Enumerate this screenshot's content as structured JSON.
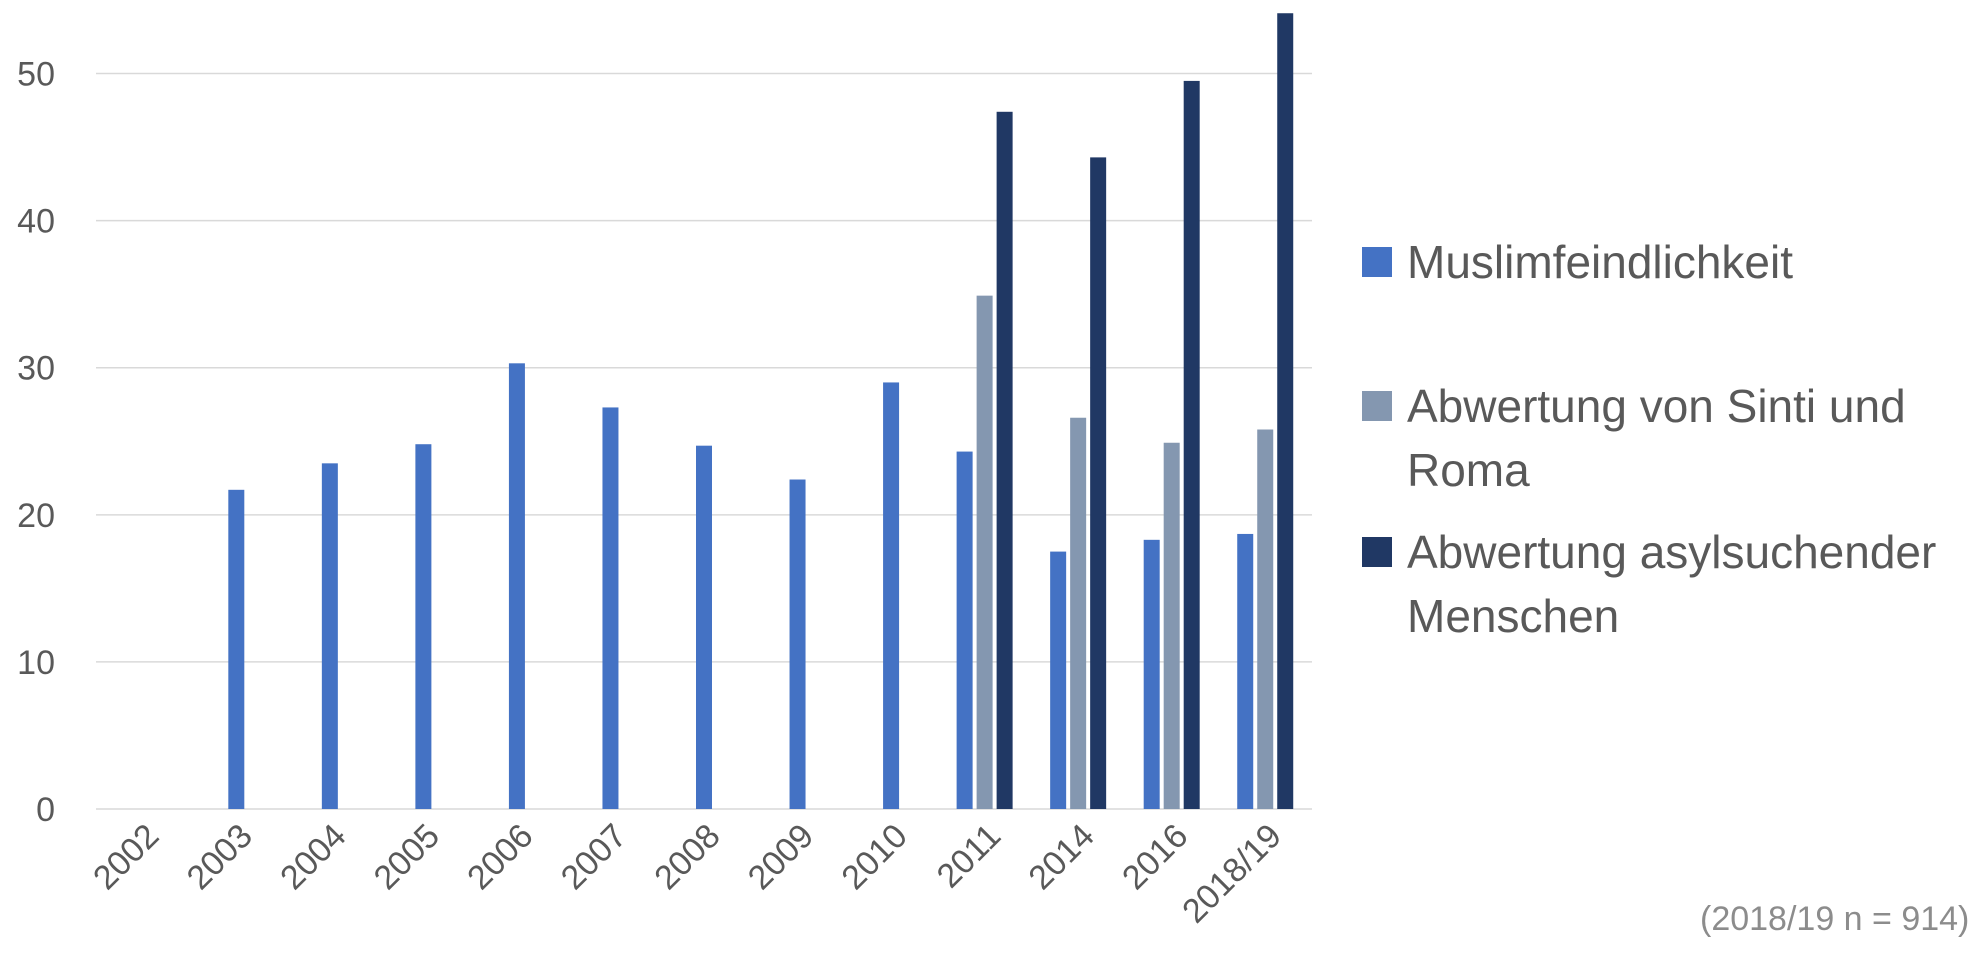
{
  "chart_data": {
    "type": "bar",
    "title": "",
    "xlabel": "",
    "ylabel": "",
    "ylim": [
      0,
      55
    ],
    "yticks": [
      0,
      10,
      20,
      30,
      40,
      50
    ],
    "grid": true,
    "legend_position": "right",
    "categories": [
      "2002",
      "2003",
      "2004",
      "2005",
      "2006",
      "2007",
      "2008",
      "2009",
      "2010",
      "2011",
      "2014",
      "2016",
      "2018/19"
    ],
    "series": [
      {
        "name": "Muslimfeindlichkeit",
        "color": "#4472C4",
        "values": [
          null,
          21.7,
          23.5,
          24.8,
          30.3,
          27.3,
          24.7,
          22.4,
          29.0,
          24.3,
          17.5,
          18.3,
          18.7
        ]
      },
      {
        "name": "Abwertung von Sinti und Roma",
        "color": "#8497B0",
        "values": [
          null,
          null,
          null,
          null,
          null,
          null,
          null,
          null,
          null,
          34.9,
          26.6,
          24.9,
          25.8
        ]
      },
      {
        "name": "Abwertung asylsuchender Menschen",
        "color": "#203864",
        "values": [
          null,
          null,
          null,
          null,
          null,
          null,
          null,
          null,
          null,
          47.4,
          44.3,
          49.5,
          54.1
        ]
      }
    ]
  },
  "note": "(2018/19 n = 914)"
}
